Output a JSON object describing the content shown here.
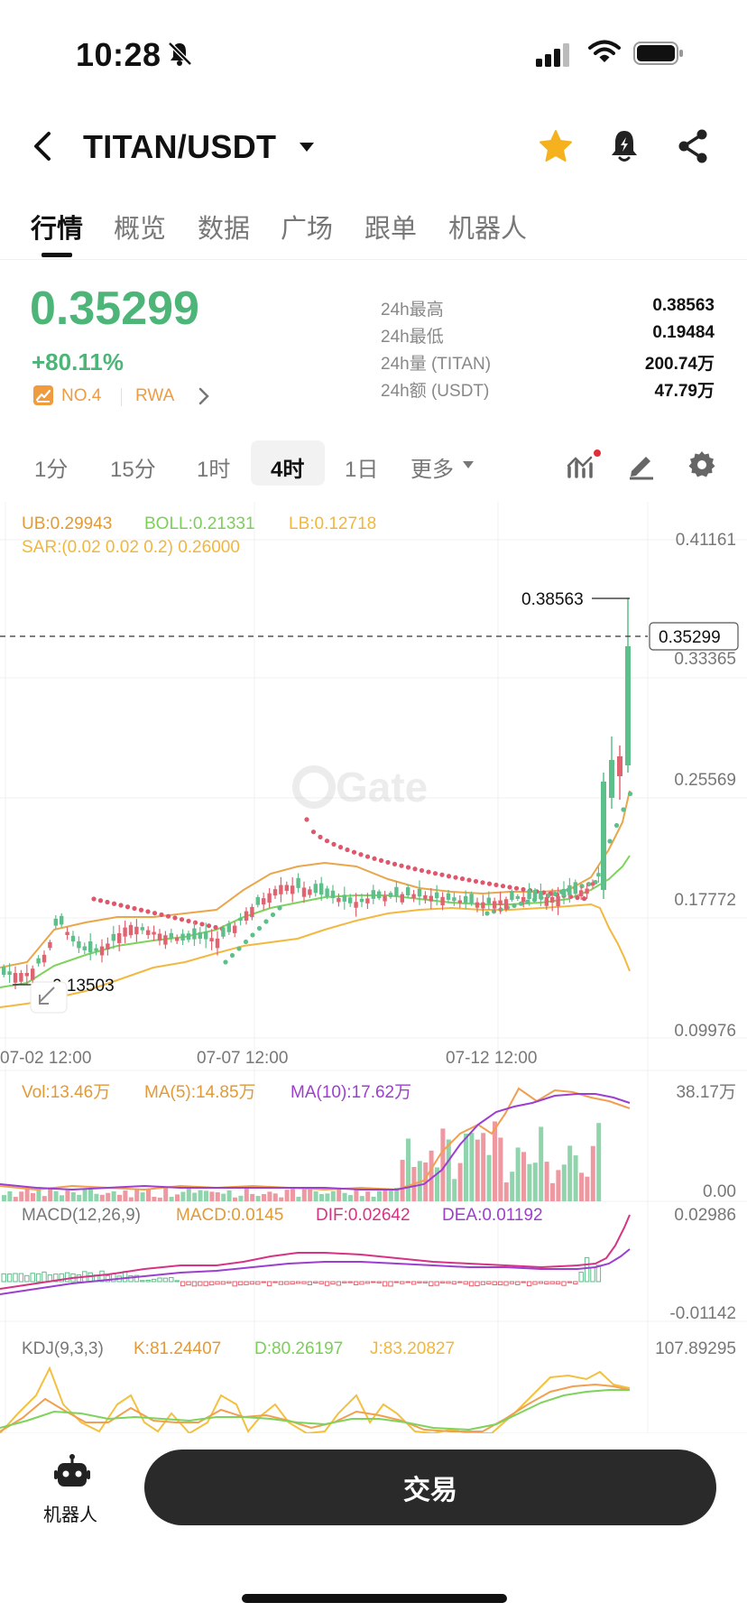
{
  "status": {
    "time": "10:28"
  },
  "header": {
    "pair": "TITAN/USDT"
  },
  "tabs": [
    {
      "label": "行情",
      "active": true
    },
    {
      "label": "概览"
    },
    {
      "label": "数据"
    },
    {
      "label": "广场"
    },
    {
      "label": "跟单"
    },
    {
      "label": "机器人"
    }
  ],
  "price": {
    "last": "0.35299",
    "change": "+80.11%",
    "rank": "NO.4",
    "tag": "RWA",
    "stats": [
      {
        "label": "24h最高",
        "value": "0.38563"
      },
      {
        "label": "24h最低",
        "value": "0.19484"
      },
      {
        "label": "24h量 (TITAN)",
        "value": "200.74万"
      },
      {
        "label": "24h额 (USDT)",
        "value": "47.79万"
      }
    ]
  },
  "intervals": [
    {
      "label": "1分"
    },
    {
      "label": "15分"
    },
    {
      "label": "1时"
    },
    {
      "label": "4时",
      "active": true
    },
    {
      "label": "1日"
    },
    {
      "label": "更多"
    }
  ],
  "chart_data": {
    "type": "candlestick",
    "watermark": "Gate",
    "main": {
      "legend": {
        "ub": "UB:0.29943",
        "boll": "BOLL:0.21331",
        "lb": "LB:0.12718",
        "sar": "SAR:(0.02 0.02 0.2) 0.26000"
      },
      "y_ticks": [
        "0.41161",
        "0.33365",
        "0.25569",
        "0.17772",
        "0.09976"
      ],
      "ylim": [
        0.09976,
        0.41161
      ],
      "x_ticks": [
        "07-02 12:00",
        "07-07 12:00",
        "07-12 12:00"
      ],
      "high_label": "0.38563",
      "low_label": "0.13503",
      "last_price": "0.35299",
      "last_price_value": 0.35299,
      "colors": {
        "up": "#5dbf8a",
        "down": "#e06470",
        "ub": "#eaa64a",
        "boll": "#7dd35c",
        "lb": "#f3b83f",
        "sar_down": "#e0566a",
        "sar_up": "#5dbf8a"
      }
    },
    "volume": {
      "legend": {
        "vol": "Vol:13.46万",
        "ma5": "MA(5):14.85万",
        "ma10": "MA(10):17.62万"
      },
      "y_ticks": [
        "38.17万",
        "0.00"
      ],
      "colors": {
        "ma5": "#f0a050",
        "ma10": "#9c3ed0"
      }
    },
    "macd": {
      "legend": {
        "name": "MACD(12,26,9)",
        "macd": "MACD:0.0145",
        "dif": "DIF:0.02642",
        "dea": "DEA:0.01192"
      },
      "y_ticks": [
        "0.02986",
        "-0.01142"
      ],
      "colors": {
        "dif": "#d63384",
        "dea": "#9c3ed0"
      }
    },
    "kdj": {
      "legend": {
        "name": "KDJ(9,3,3)",
        "k": "K:81.24407",
        "d": "D:80.26197",
        "j": "J:83.20827"
      },
      "y_ticks": [
        "107.89295"
      ],
      "colors": {
        "k": "#f0a050",
        "d": "#7dd35c",
        "j": "#f3c13f"
      }
    }
  },
  "bottom": {
    "robot_label": "机器人",
    "trade_label": "交易"
  }
}
